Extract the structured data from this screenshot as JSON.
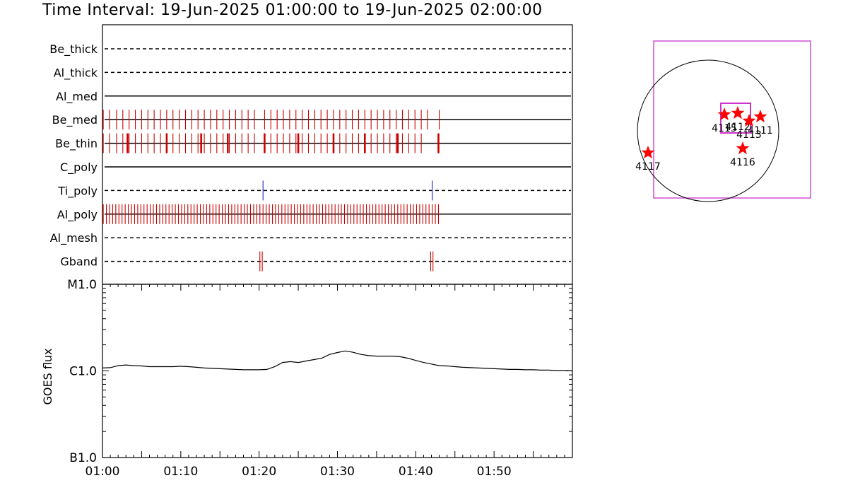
{
  "title": "Time Interval: 19-Jun-2025 01:00:00 to 19-Jun-2025 02:00:00",
  "colors": {
    "exposure": "#cc0000",
    "ti_poly": "#2222cc",
    "star": "#ff0000",
    "fov": "#cc33cc"
  },
  "chart_data": [
    {
      "type": "timeline",
      "x_axis": {
        "range_minutes": [
          0,
          60
        ],
        "tick_labels": [
          "01:00",
          "01:10",
          "01:20",
          "01:30",
          "01:40",
          "01:50"
        ],
        "tick_values": [
          0,
          10,
          20,
          30,
          40,
          50
        ]
      },
      "rows": [
        {
          "name": "Be_thick",
          "style": "dashed",
          "ticks": []
        },
        {
          "name": "Al_thick",
          "style": "dashed",
          "ticks": []
        },
        {
          "name": "Al_med",
          "style": "solid",
          "ticks": []
        },
        {
          "name": "Be_med",
          "style": "solid",
          "color": "exposure",
          "ticks": [
            0.1,
            0.9,
            1.8,
            2.6,
            3.4,
            4.2,
            5.0,
            5.8,
            6.6,
            7.4,
            8.2,
            9.0,
            9.8,
            10.6,
            11.4,
            12.2,
            13.0,
            13.8,
            14.6,
            15.4,
            16.2,
            17.0,
            17.8,
            18.6,
            19.4,
            20.7,
            21.5,
            22.3,
            23.1,
            23.9,
            24.7,
            25.5,
            26.3,
            27.1,
            27.9,
            28.7,
            29.5,
            30.3,
            31.1,
            31.9,
            32.7,
            33.5,
            34.3,
            35.1,
            35.9,
            36.7,
            37.5,
            38.3,
            39.1,
            39.9,
            40.7,
            41.5,
            43.0
          ]
        },
        {
          "name": "Be_thin",
          "style": "solid",
          "color": "exposure",
          "ticks": [
            0.1,
            0.9,
            1.8,
            2.6,
            3.4,
            4.2,
            5.0,
            5.8,
            6.6,
            7.4,
            8.2,
            9.0,
            9.8,
            10.6,
            11.4,
            12.2,
            13.0,
            13.8,
            14.6,
            15.4,
            16.2,
            17.0,
            17.8,
            18.6,
            19.4,
            20.7,
            21.5,
            22.3,
            23.1,
            23.9,
            24.7,
            25.5,
            26.3,
            27.1,
            27.9,
            28.7,
            29.5,
            30.3,
            31.1,
            31.9,
            32.7,
            33.5,
            34.3,
            35.1,
            35.9,
            36.7,
            37.5,
            38.3,
            39.1,
            39.9,
            40.7,
            42.9
          ],
          "thick_ticks": [
            3.2,
            8.2,
            12.6,
            16.0,
            20.7,
            25.0,
            29.5,
            33.5,
            37.7,
            42.9
          ]
        },
        {
          "name": "C_poly",
          "style": "solid",
          "ticks": []
        },
        {
          "name": "Ti_poly",
          "style": "dashed",
          "color": "ti_poly",
          "ticks": [
            20.5,
            42.1
          ]
        },
        {
          "name": "Al_poly",
          "style": "solid",
          "color": "exposure",
          "dense_range": [
            0.1,
            43.2
          ],
          "dense_step": 0.4
        },
        {
          "name": "Al_mesh",
          "style": "dashed",
          "ticks": []
        },
        {
          "name": "Gband",
          "style": "dashed",
          "color": "exposure",
          "ticks": [
            20.1,
            20.4,
            41.9,
            42.2
          ]
        }
      ]
    },
    {
      "type": "line",
      "ylabel": "GOES flux",
      "y_tick_labels": [
        "M1.0",
        "C1.0",
        "B1.0"
      ],
      "y_scale": "log",
      "y_range": [
        1e-07,
        1e-05
      ],
      "x": [
        0,
        1,
        2,
        3,
        4,
        5,
        6,
        7,
        8,
        9,
        10,
        11,
        12,
        13,
        14,
        15,
        16,
        17,
        18,
        19,
        20,
        21,
        22,
        23,
        24,
        25,
        26,
        27,
        28,
        29,
        30,
        31,
        32,
        33,
        34,
        35,
        36,
        37,
        38,
        39,
        40,
        41,
        42,
        43,
        44,
        45,
        46,
        47,
        48,
        49,
        50,
        51,
        52,
        53,
        54,
        55,
        56,
        57,
        58,
        59,
        60
      ],
      "y": [
        1.08e-06,
        1.09e-06,
        1.15e-06,
        1.17e-06,
        1.15e-06,
        1.14e-06,
        1.12e-06,
        1.12e-06,
        1.12e-06,
        1.12e-06,
        1.13e-06,
        1.12e-06,
        1.1e-06,
        1.08e-06,
        1.07e-06,
        1.06e-06,
        1.05e-06,
        1.04e-06,
        1.03e-06,
        1.03e-06,
        1.03e-06,
        1.04e-06,
        1.12e-06,
        1.25e-06,
        1.28e-06,
        1.25e-06,
        1.3e-06,
        1.35e-06,
        1.4e-06,
        1.55e-06,
        1.63e-06,
        1.7e-06,
        1.64e-06,
        1.55e-06,
        1.5e-06,
        1.48e-06,
        1.48e-06,
        1.48e-06,
        1.46e-06,
        1.4e-06,
        1.32e-06,
        1.25e-06,
        1.2e-06,
        1.15e-06,
        1.14e-06,
        1.12e-06,
        1.1e-06,
        1.09e-06,
        1.08e-06,
        1.07e-06,
        1.06e-06,
        1.05e-06,
        1.04e-06,
        1.04e-06,
        1.03e-06,
        1.03e-06,
        1.02e-06,
        1.02e-06,
        1.01e-06,
        1.01e-06,
        1e-06
      ]
    },
    {
      "type": "scatter",
      "kind": "solar-disk-map",
      "regions": [
        {
          "label": "4115",
          "x": 0.23,
          "y": 0.23
        },
        {
          "label": "4112",
          "x": 0.42,
          "y": 0.25
        },
        {
          "label": "4113",
          "x": 0.58,
          "y": 0.14
        },
        {
          "label": "4111",
          "x": 0.74,
          "y": 0.2
        },
        {
          "label": "4116",
          "x": 0.49,
          "y": -0.25
        },
        {
          "label": "4117",
          "x": -0.85,
          "y": -0.31
        }
      ]
    }
  ]
}
